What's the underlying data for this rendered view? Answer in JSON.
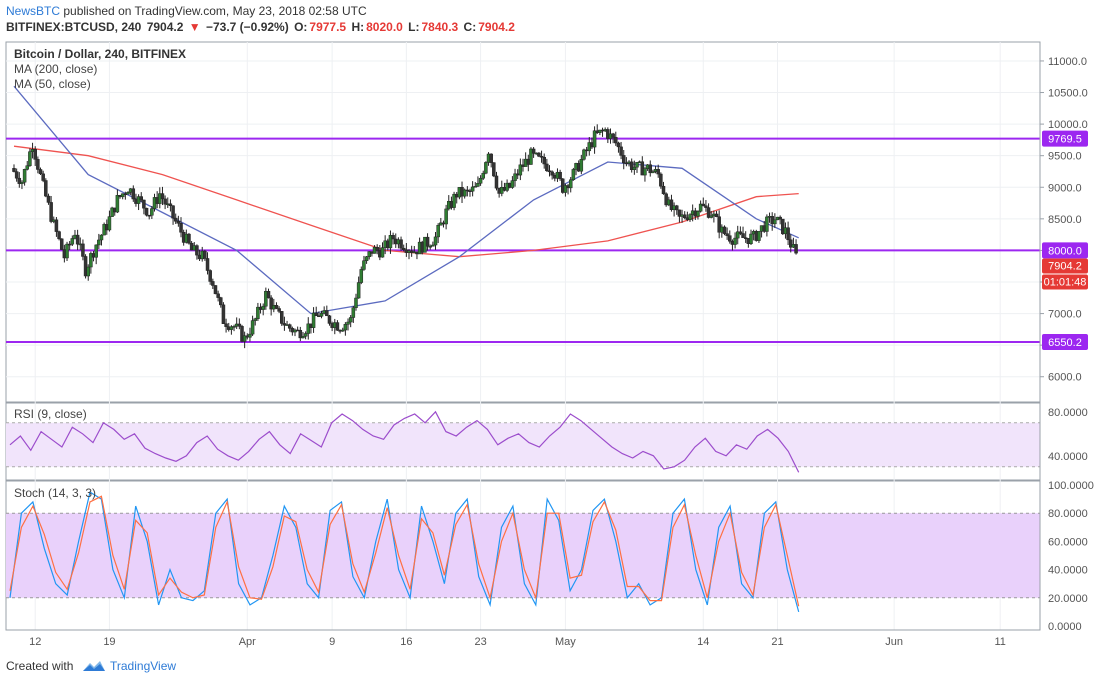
{
  "header": {
    "publisher": "NewsBTC",
    "published_text": "published on TradingView.com, May 23, 2018 02:58 UTC",
    "symbol_line": "BITFINEX:BTCUSD, 240",
    "last": "7904.2",
    "change_arrow": "▼",
    "change": "−73.7 (−0.92%)",
    "open_label": "O:",
    "open": "7977.5",
    "high_label": "H:",
    "high": "8020.0",
    "low_label": "L:",
    "low": "7840.3",
    "close_label": "C:",
    "close": "7904.2"
  },
  "footer": {
    "created_with": "Created with",
    "brand": "TradingView",
    "logo_icon": "tradingview-logo-icon"
  },
  "colors": {
    "price_up": "#26a69a",
    "price_candle": "#2f7d32",
    "ma200": "#ef5350",
    "ma50": "#5c6bc0",
    "level": "#9c27f0",
    "rsi": "#9c4dcc",
    "stoch_k": "#2196f3",
    "stoch_d": "#ff7043"
  },
  "chart_data": [
    {
      "type": "candlestick",
      "title": "Bitcoin / Dollar, 240, BITFINEX",
      "indicators": [
        "MA (200, close)",
        "MA (50, close)"
      ],
      "x_ticks": [
        "12",
        "19",
        "Apr",
        "9",
        "16",
        "23",
        "May",
        "14",
        "21",
        "Jun",
        "11"
      ],
      "y_ticks": [
        "11000.0",
        "10500.0",
        "10000.0",
        "9500.0",
        "9000.0",
        "8500.0",
        "8000.0",
        "7500.0",
        "7000.0",
        "6500.0",
        "6000.0"
      ],
      "ylim": [
        5600,
        11300
      ],
      "levels": [
        {
          "value": 9769.5,
          "label": "9769.5"
        },
        {
          "value": 8000.0,
          "label": "8000.0"
        },
        {
          "value": 6550.2,
          "label": "6550.2"
        }
      ],
      "last_price": {
        "value": 7904.2,
        "label": "7904.2"
      },
      "countdown": "01:01:48",
      "close_path": [
        [
          "Mar 10",
          9300
        ],
        [
          "Mar 11",
          9100
        ],
        [
          "Mar 12",
          9700
        ],
        [
          "Mar 13",
          9000
        ],
        [
          "Mar 14",
          8400
        ],
        [
          "Mar 15",
          7900
        ],
        [
          "Mar 16",
          8300
        ],
        [
          "Mar 17",
          7700
        ],
        [
          "Mar 18",
          8100
        ],
        [
          "Mar 19",
          8400
        ],
        [
          "Mar 20",
          8800
        ],
        [
          "Mar 21",
          9000
        ],
        [
          "Mar 22",
          8800
        ],
        [
          "Mar 23",
          8600
        ],
        [
          "Mar 24",
          8900
        ],
        [
          "Mar 25",
          8600
        ],
        [
          "Mar 26",
          8300
        ],
        [
          "Mar 27",
          8000
        ],
        [
          "Mar 28",
          7900
        ],
        [
          "Mar 29",
          7500
        ],
        [
          "Mar 30",
          6900
        ],
        [
          "Mar 31",
          6800
        ],
        [
          "Apr 1",
          6600
        ],
        [
          "Apr 2",
          6900
        ],
        [
          "Apr 3",
          7300
        ],
        [
          "Apr 4",
          7000
        ],
        [
          "Apr 5",
          6800
        ],
        [
          "Apr 6",
          6700
        ],
        [
          "Apr 7",
          6800
        ],
        [
          "Apr 8",
          7000
        ],
        [
          "Apr 9",
          6900
        ],
        [
          "Apr 10",
          6800
        ],
        [
          "Apr 11",
          6900
        ],
        [
          "Apr 12",
          7700
        ],
        [
          "Apr 13",
          8000
        ],
        [
          "Apr 14",
          8000
        ],
        [
          "Apr 15",
          8200
        ],
        [
          "Apr 16",
          8100
        ],
        [
          "Apr 17",
          8000
        ],
        [
          "Apr 18",
          8100
        ],
        [
          "Apr 19",
          8200
        ],
        [
          "Apr 20",
          8600
        ],
        [
          "Apr 21",
          8900
        ],
        [
          "Apr 22",
          8900
        ],
        [
          "Apr 23",
          9000
        ],
        [
          "Apr 24",
          9600
        ],
        [
          "Apr 25",
          8900
        ],
        [
          "Apr 26",
          9000
        ],
        [
          "Apr 27",
          9300
        ],
        [
          "Apr 28",
          9500
        ],
        [
          "Apr 29",
          9400
        ],
        [
          "Apr 30",
          9300
        ],
        [
          "May 1",
          9000
        ],
        [
          "May 2",
          9200
        ],
        [
          "May 3",
          9500
        ],
        [
          "May 4",
          9800
        ],
        [
          "May 5",
          9900
        ],
        [
          "May 6",
          9700
        ],
        [
          "May 7",
          9400
        ],
        [
          "May 8",
          9300
        ],
        [
          "May 9",
          9300
        ],
        [
          "May 10",
          9200
        ],
        [
          "May 11",
          8700
        ],
        [
          "May 12",
          8500
        ],
        [
          "May 13",
          8600
        ],
        [
          "May 14",
          8700
        ],
        [
          "May 15",
          8600
        ],
        [
          "May 16",
          8300
        ],
        [
          "May 17",
          8200
        ],
        [
          "May 18",
          8200
        ],
        [
          "May 19",
          8200
        ],
        [
          "May 20",
          8400
        ],
        [
          "May 21",
          8500
        ],
        [
          "May 22",
          8300
        ],
        [
          "May 23",
          7904
        ]
      ],
      "ma200_path": [
        [
          "Mar 10",
          9650
        ],
        [
          "Mar 17",
          9500
        ],
        [
          "Mar 24",
          9200
        ],
        [
          "Mar 31",
          8800
        ],
        [
          "Apr 7",
          8400
        ],
        [
          "Apr 14",
          8000
        ],
        [
          "Apr 21",
          7900
        ],
        [
          "Apr 28",
          8000
        ],
        [
          "May 5",
          8150
        ],
        [
          "May 12",
          8450
        ],
        [
          "May 19",
          8850
        ],
        [
          "May 23",
          8900
        ]
      ],
      "ma50_path": [
        [
          "Mar 10",
          10600
        ],
        [
          "Mar 17",
          9200
        ],
        [
          "Mar 24",
          8600
        ],
        [
          "Mar 31",
          8000
        ],
        [
          "Apr 7",
          7000
        ],
        [
          "Apr 14",
          7200
        ],
        [
          "Apr 21",
          7900
        ],
        [
          "Apr 28",
          8800
        ],
        [
          "May 5",
          9400
        ],
        [
          "May 12",
          9300
        ],
        [
          "May 19",
          8500
        ],
        [
          "May 23",
          8200
        ]
      ]
    },
    {
      "type": "line",
      "title": "RSI (9, close)",
      "y_ticks": [
        "80.0000",
        "40.0000"
      ],
      "ylim": [
        18,
        88
      ],
      "band": [
        30,
        70
      ],
      "values": [
        50,
        58,
        45,
        62,
        55,
        48,
        66,
        60,
        52,
        70,
        64,
        55,
        60,
        47,
        42,
        38,
        35,
        40,
        52,
        58,
        46,
        40,
        36,
        44,
        55,
        62,
        50,
        42,
        60,
        54,
        48,
        70,
        78,
        72,
        64,
        58,
        55,
        68,
        74,
        78,
        70,
        80,
        62,
        58,
        66,
        72,
        64,
        50,
        56,
        60,
        52,
        48,
        58,
        66,
        78,
        72,
        64,
        56,
        48,
        42,
        38,
        44,
        40,
        28,
        30,
        36,
        48,
        56,
        44,
        40,
        50,
        46,
        58,
        64,
        56,
        44,
        25
      ]
    },
    {
      "type": "line",
      "title": "Stoch (14, 3, 3)",
      "y_ticks": [
        "100.0000",
        "80.0000",
        "60.0000",
        "40.0000",
        "20.0000",
        "0.0000"
      ],
      "ylim": [
        0,
        100
      ],
      "band": [
        20,
        80
      ],
      "series": [
        {
          "values": [
            20,
            80,
            88,
            55,
            30,
            22,
            60,
            95,
            90,
            40,
            20,
            85,
            60,
            15,
            40,
            20,
            18,
            25,
            80,
            90,
            30,
            15,
            20,
            50,
            85,
            70,
            30,
            20,
            82,
            88,
            35,
            20,
            60,
            90,
            40,
            20,
            85,
            60,
            30,
            80,
            90,
            35,
            15,
            70,
            85,
            30,
            15,
            90,
            75,
            25,
            40,
            82,
            90,
            60,
            20,
            30,
            15,
            20,
            80,
            90,
            40,
            15,
            70,
            85,
            30,
            20,
            80,
            88,
            40,
            10
          ]
        },
        {
          "values": [
            25,
            70,
            85,
            65,
            38,
            26,
            52,
            88,
            92,
            50,
            26,
            75,
            66,
            22,
            34,
            24,
            20,
            22,
            70,
            88,
            42,
            20,
            19,
            42,
            78,
            74,
            40,
            24,
            72,
            86,
            44,
            24,
            52,
            84,
            50,
            26,
            76,
            66,
            36,
            72,
            86,
            44,
            20,
            60,
            80,
            40,
            20,
            80,
            80,
            34,
            36,
            74,
            88,
            68,
            28,
            28,
            18,
            18,
            70,
            86,
            50,
            20,
            60,
            80,
            38,
            22,
            70,
            86,
            50,
            14
          ]
        }
      ]
    }
  ]
}
